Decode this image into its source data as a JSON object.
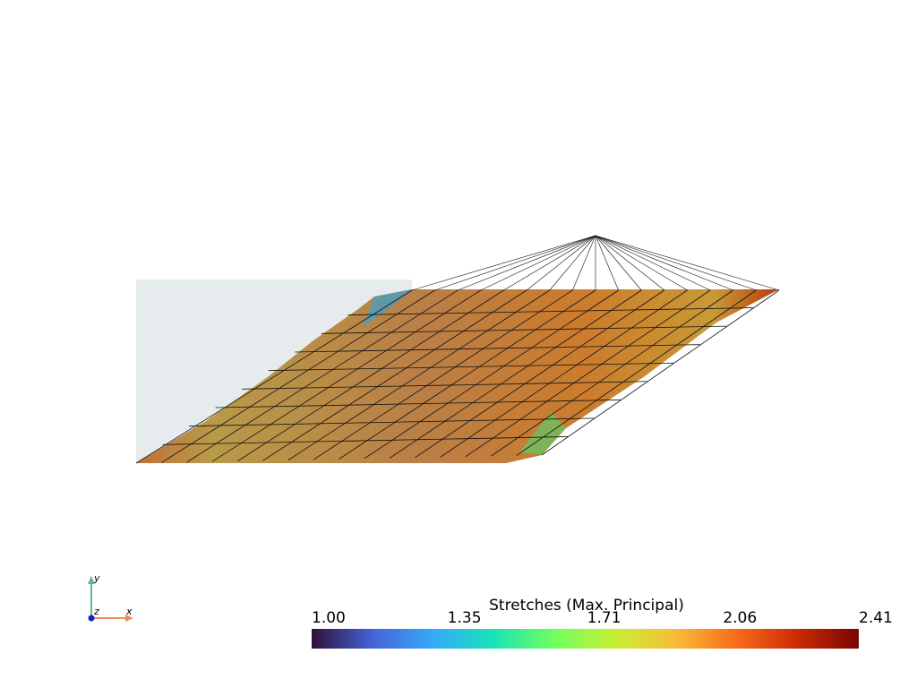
{
  "scalar_bar": {
    "title": "Stretches (Max. Principal)",
    "range": [
      1.0,
      2.41
    ],
    "ticks": [
      {
        "value": 1.0,
        "label": "1.00"
      },
      1.35,
      1.71,
      2.06,
      2.41
    ],
    "colors": [
      "#30123b",
      "#4662d7",
      "#36aaf9",
      "#1ae4b6",
      "#72fe5e",
      "#c7ef34",
      "#fabb39",
      "#f66b19",
      "#cb2a04",
      "#7a0403"
    ]
  },
  "axes_widget": {
    "x": "x",
    "y": "y",
    "z": "z"
  }
}
